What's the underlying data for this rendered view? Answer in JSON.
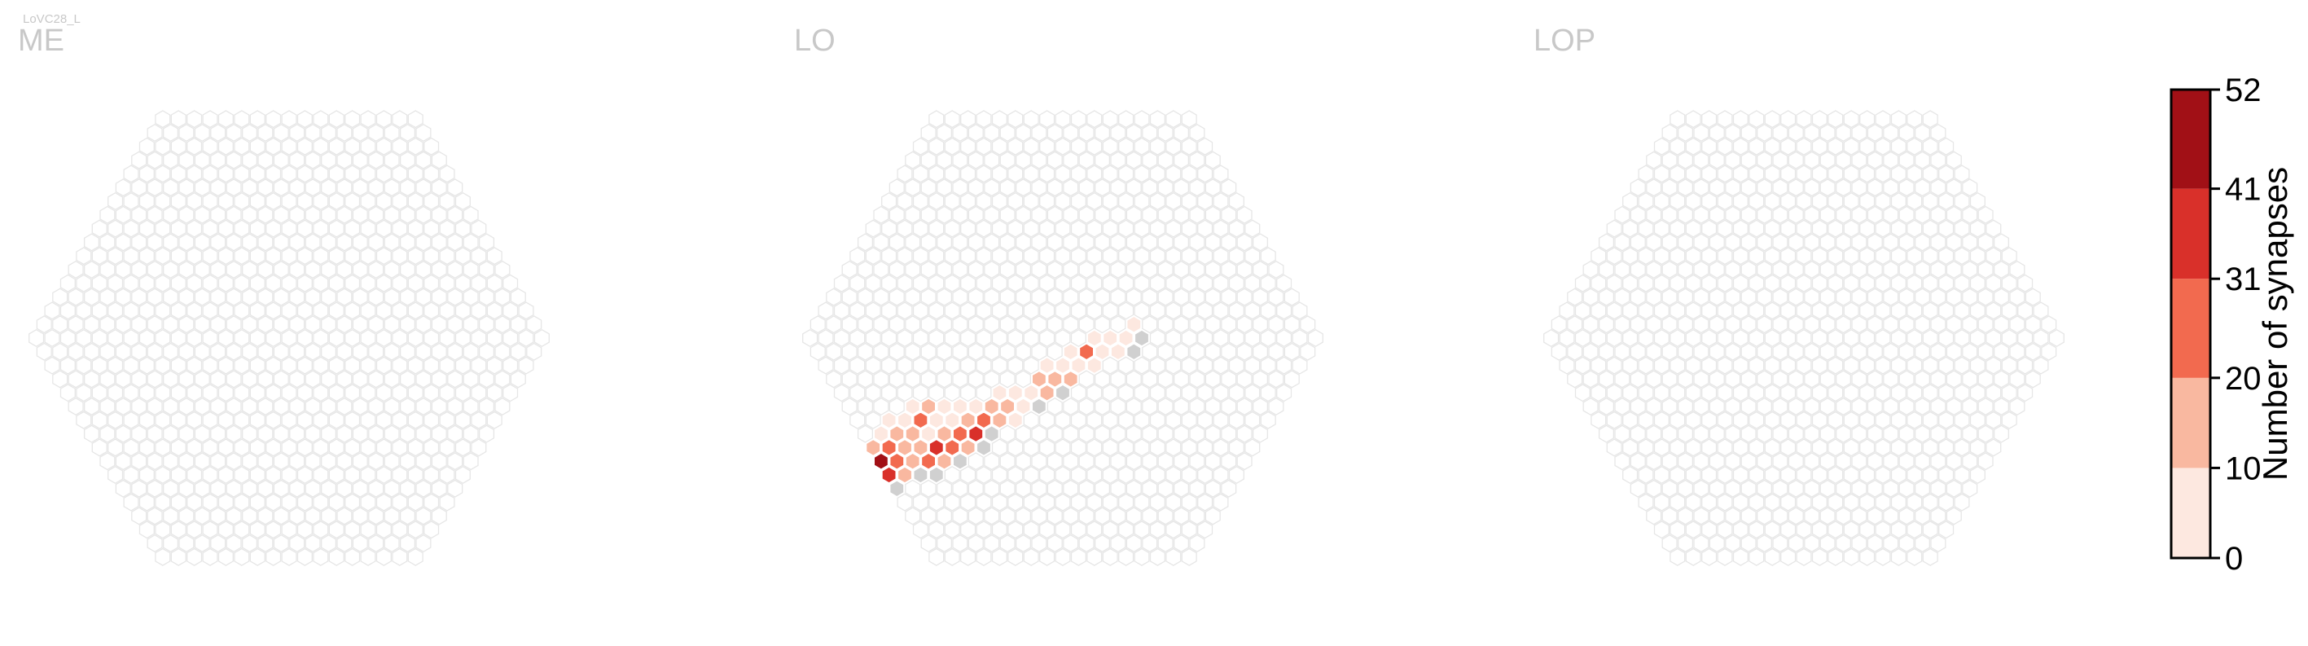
{
  "chart_data": {
    "type": "heatmap",
    "neuron_label": "LoVC28_L",
    "panels": [
      {
        "title": "ME",
        "cells": []
      },
      {
        "title": "LO",
        "cells": [
          [
            -16,
            -8,
            0
          ],
          [
            -15,
            -8,
            10
          ],
          [
            -15,
            -7,
            5
          ],
          [
            -14,
            -9,
            15
          ],
          [
            -14,
            -8,
            25
          ],
          [
            -14,
            -7,
            5
          ],
          [
            -13,
            -9,
            28
          ],
          [
            -13,
            -8,
            40
          ],
          [
            -13,
            -7,
            12
          ],
          [
            -13,
            -6,
            4
          ],
          [
            -12,
            -10,
            34
          ],
          [
            -12,
            -9,
            12
          ],
          [
            -12,
            -8,
            6
          ],
          [
            -12,
            -7,
            3
          ],
          [
            -11,
            -10,
            14
          ],
          [
            -11,
            -9,
            8
          ],
          [
            -11,
            -8,
            4
          ],
          [
            -11,
            -7,
            2
          ],
          [
            -10,
            -11,
            18
          ],
          [
            -10,
            -10,
            30
          ],
          [
            -10,
            -9,
            13
          ],
          [
            -10,
            -8,
            3
          ],
          [
            -10,
            -7,
            6
          ],
          [
            -9,
            -11,
            0
          ],
          [
            -9,
            -10,
            9
          ],
          [
            -9,
            -9,
            16
          ],
          [
            -9,
            -8,
            5
          ],
          [
            -8,
            -11,
            0
          ],
          [
            -8,
            -10,
            50
          ],
          [
            -8,
            -9,
            16
          ],
          [
            -8,
            -8,
            12
          ],
          [
            -8,
            -7,
            9
          ],
          [
            -8,
            -6,
            3
          ],
          [
            -7,
            -11,
            0
          ],
          [
            -7,
            -10,
            22
          ],
          [
            -7,
            -9,
            45
          ],
          [
            -7,
            -8,
            30
          ],
          [
            -7,
            -7,
            18
          ],
          [
            -7,
            -6,
            9
          ],
          [
            -7,
            -5,
            5
          ],
          [
            -6,
            -11,
            28
          ],
          [
            -6,
            -10,
            40
          ],
          [
            -6,
            -9,
            22
          ],
          [
            -6,
            -8,
            18
          ],
          [
            -6,
            -7,
            11
          ],
          [
            -6,
            -6,
            22
          ],
          [
            -6,
            -5,
            13
          ],
          [
            -5,
            -11,
            0
          ],
          [
            -5,
            -10,
            18
          ],
          [
            -5,
            -9,
            14
          ],
          [
            -5,
            -8,
            12
          ],
          [
            -5,
            -7,
            4
          ],
          [
            -5,
            -6,
            6
          ],
          [
            -5,
            -5,
            2
          ],
          [
            -4,
            -10,
            0
          ],
          [
            -4,
            -9,
            30
          ],
          [
            -4,
            -8,
            35
          ],
          [
            -4,
            -7,
            18
          ],
          [
            -4,
            -6,
            9
          ],
          [
            -4,
            -5,
            6
          ],
          [
            -3,
            -10,
            0
          ],
          [
            -3,
            -9,
            14
          ],
          [
            -3,
            -8,
            22
          ],
          [
            -3,
            -7,
            28
          ],
          [
            -3,
            -6,
            12
          ],
          [
            -3,
            -5,
            4
          ],
          [
            -2,
            -9,
            0
          ],
          [
            -2,
            -8,
            12
          ],
          [
            -2,
            -7,
            33
          ],
          [
            -2,
            -6,
            25
          ],
          [
            -2,
            -5,
            13
          ],
          [
            -2,
            -4,
            4
          ],
          [
            -1,
            -8,
            0
          ],
          [
            -1,
            -7,
            0
          ],
          [
            -1,
            -6,
            14
          ],
          [
            -1,
            -5,
            18
          ],
          [
            -1,
            -4,
            6
          ],
          [
            0,
            -6,
            7
          ],
          [
            0,
            -5,
            3
          ],
          [
            0,
            -4,
            5
          ],
          [
            0,
            -3,
            12
          ],
          [
            0,
            -2,
            5
          ],
          [
            1,
            -5,
            0
          ],
          [
            1,
            -4,
            14
          ],
          [
            1,
            -3,
            20
          ],
          [
            1,
            -2,
            6
          ],
          [
            1,
            -1,
            3
          ],
          [
            2,
            -4,
            0
          ],
          [
            2,
            -3,
            12
          ],
          [
            2,
            -2,
            9
          ],
          [
            2,
            -1,
            28
          ],
          [
            2,
            0,
            4
          ],
          [
            3,
            -2,
            5
          ],
          [
            3,
            -1,
            6
          ],
          [
            3,
            0,
            7
          ],
          [
            4,
            -1,
            2
          ],
          [
            4,
            0,
            4
          ],
          [
            4,
            1,
            3
          ],
          [
            5,
            -1,
            0
          ],
          [
            5,
            0,
            0
          ]
        ]
      },
      {
        "title": "LOP",
        "cells": []
      }
    ],
    "colorbar": {
      "label": "Number of synapses",
      "ticks": [
        0,
        10,
        20,
        31,
        41,
        52
      ],
      "colors": [
        "#fde8e0",
        "#f9b8a0",
        "#f26a4f",
        "#d9302a",
        "#a11016"
      ]
    },
    "empty_cell_color": "#d0d0d0"
  }
}
